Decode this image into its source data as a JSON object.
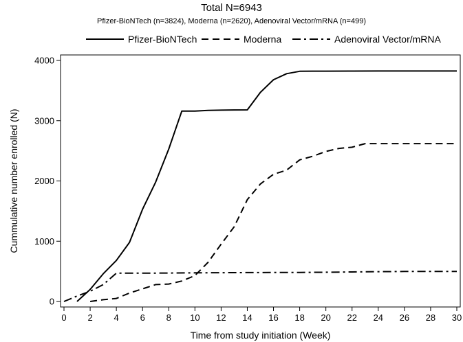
{
  "chart_data": {
    "type": "line",
    "title": "Total N=6943",
    "subtitle": "Pfizer-BioNTech (n=3824), Moderna  (n=2620), Adenoviral Vector/mRNA (n=499)",
    "xlabel": "Time from study initiation (Week)",
    "ylabel": "Cummulative number enrolled (N)",
    "xlim": [
      0,
      30
    ],
    "ylim": [
      0,
      4000
    ],
    "x_ticks": [
      0,
      2,
      4,
      6,
      8,
      10,
      12,
      14,
      16,
      18,
      20,
      22,
      24,
      26,
      28,
      30
    ],
    "y_ticks": [
      0,
      1000,
      2000,
      3000,
      4000
    ],
    "legend_position": "top",
    "grid": false,
    "series": [
      {
        "name": "Pfizer-BioNTech",
        "dash": "solid",
        "x": [
          1,
          2,
          3,
          4,
          5,
          6,
          7,
          8,
          9,
          10,
          11,
          12,
          13,
          14,
          15,
          16,
          17,
          18,
          19,
          20,
          22,
          24,
          26,
          28,
          30
        ],
        "y": [
          0,
          200,
          460,
          680,
          980,
          1530,
          1980,
          2530,
          3160,
          3160,
          3170,
          3175,
          3178,
          3180,
          3470,
          3680,
          3780,
          3820,
          3822,
          3822,
          3823,
          3824,
          3824,
          3824,
          3824
        ]
      },
      {
        "name": "Moderna",
        "dash": "dash",
        "x": [
          2,
          3,
          4,
          5,
          6,
          7,
          8,
          9,
          10,
          11,
          12,
          13,
          14,
          15,
          16,
          17,
          18,
          19,
          20,
          21,
          22,
          23,
          24,
          26,
          28,
          30
        ],
        "y": [
          0,
          30,
          50,
          140,
          210,
          280,
          290,
          340,
          430,
          650,
          950,
          1240,
          1690,
          1950,
          2110,
          2180,
          2350,
          2410,
          2490,
          2540,
          2560,
          2620,
          2620,
          2620,
          2620,
          2620
        ]
      },
      {
        "name": "Adenoviral Vector/mRNA",
        "dash": "dashdot",
        "x": [
          0,
          1,
          2,
          3,
          4,
          5,
          6,
          8,
          10,
          14,
          18,
          20,
          22,
          24,
          26,
          28,
          30
        ],
        "y": [
          0,
          90,
          170,
          280,
          470,
          470,
          470,
          472,
          475,
          480,
          482,
          485,
          490,
          495,
          498,
          499,
          499
        ]
      }
    ]
  }
}
